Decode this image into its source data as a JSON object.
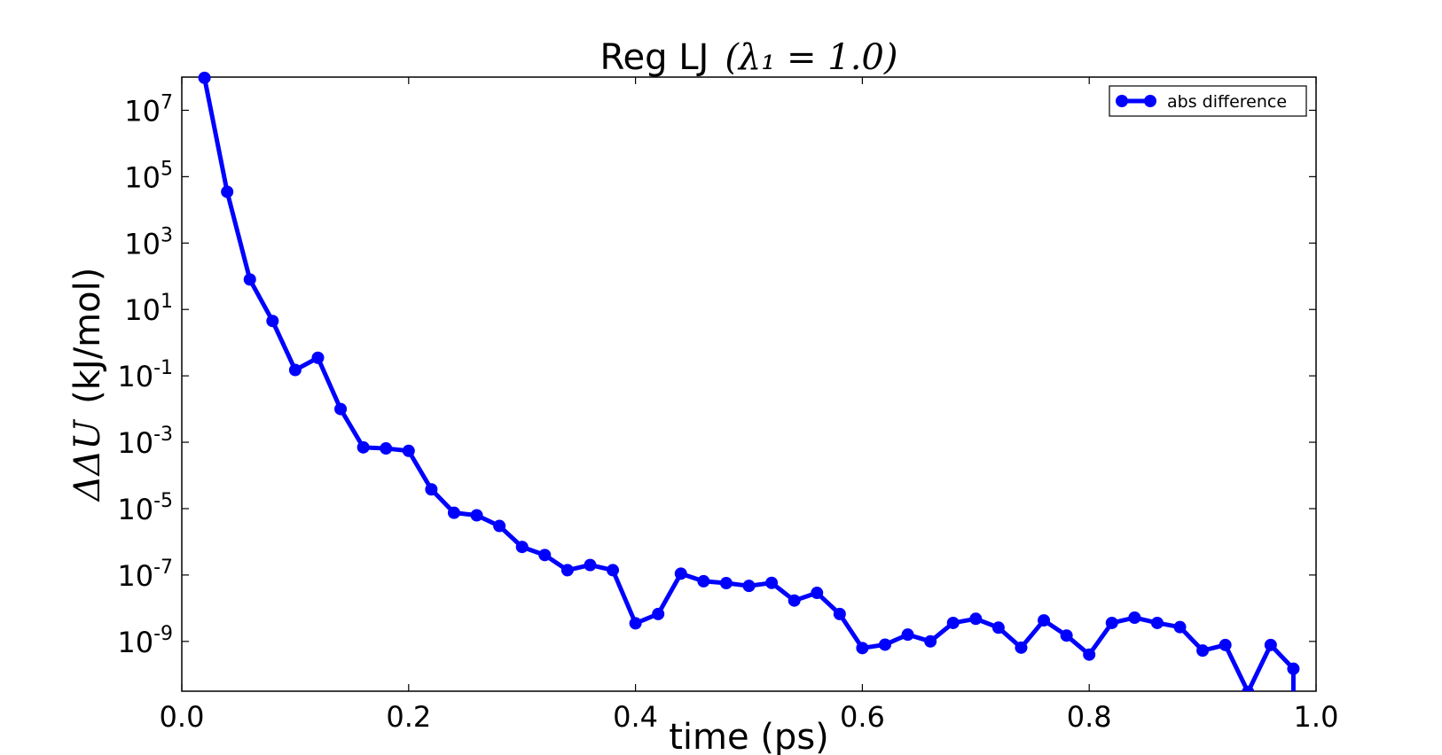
{
  "chart_data": {
    "type": "line",
    "title": "Reg LJ",
    "title_math": "(λ₁ = 1.0)",
    "xlabel": "time (ps)",
    "ylabel_prefix": "ΔΔU",
    "ylabel_suffix": "(kJ/mol)",
    "xlim": [
      0.0,
      1.0
    ],
    "ylim_log10": [
      -10.5,
      8
    ],
    "y_scale": "log",
    "grid": false,
    "legend": "top-right",
    "x_ticks": [
      "0.0",
      "0.2",
      "0.4",
      "0.6",
      "0.8",
      "1.0"
    ],
    "y_ticks": [
      {
        "base": "10",
        "exp": "7"
      },
      {
        "base": "10",
        "exp": "5"
      },
      {
        "base": "10",
        "exp": "3"
      },
      {
        "base": "10",
        "exp": "1"
      },
      {
        "base": "10",
        "exp": "-1"
      },
      {
        "base": "10",
        "exp": "-3"
      },
      {
        "base": "10",
        "exp": "-5"
      },
      {
        "base": "10",
        "exp": "-7"
      },
      {
        "base": "10",
        "exp": "-9"
      }
    ],
    "series": [
      {
        "name": "abs difference",
        "color": "#0000ff",
        "x": [
          0.02,
          0.04,
          0.06,
          0.08,
          0.1,
          0.12,
          0.14,
          0.16,
          0.18,
          0.2,
          0.22,
          0.24,
          0.26,
          0.28,
          0.3,
          0.32,
          0.34,
          0.36,
          0.38,
          0.4,
          0.42,
          0.44,
          0.46,
          0.48,
          0.5,
          0.52,
          0.54,
          0.56,
          0.58,
          0.6,
          0.62,
          0.64,
          0.66,
          0.68,
          0.7,
          0.72,
          0.74,
          0.76,
          0.78,
          0.8,
          0.82,
          0.84,
          0.86,
          0.88,
          0.9,
          0.92,
          0.94,
          0.96,
          0.98
        ],
        "y": [
          95000000.0,
          35000.0,
          80.0,
          4.5,
          0.15,
          0.35,
          0.01,
          0.0007,
          0.00065,
          0.00055,
          3.8e-05,
          7.5e-06,
          6.3e-06,
          3e-06,
          7e-07,
          4e-07,
          1.4e-07,
          2e-07,
          1.4e-07,
          3.5e-09,
          6.7e-09,
          1.1e-07,
          6.5e-08,
          5.7e-08,
          4.7e-08,
          5.8e-08,
          1.7e-08,
          2.9e-08,
          6.7e-09,
          6.3e-10,
          8e-10,
          1.6e-09,
          1e-09,
          3.6e-09,
          4.8e-09,
          2.6e-09,
          6.5e-10,
          4.3e-09,
          1.5e-09,
          4e-10,
          3.6e-09,
          5.2e-09,
          3.6e-09,
          2.7e-09,
          5.3e-10,
          7.8e-10,
          3e-11,
          7.8e-10,
          1.5e-10
        ]
      }
    ]
  }
}
